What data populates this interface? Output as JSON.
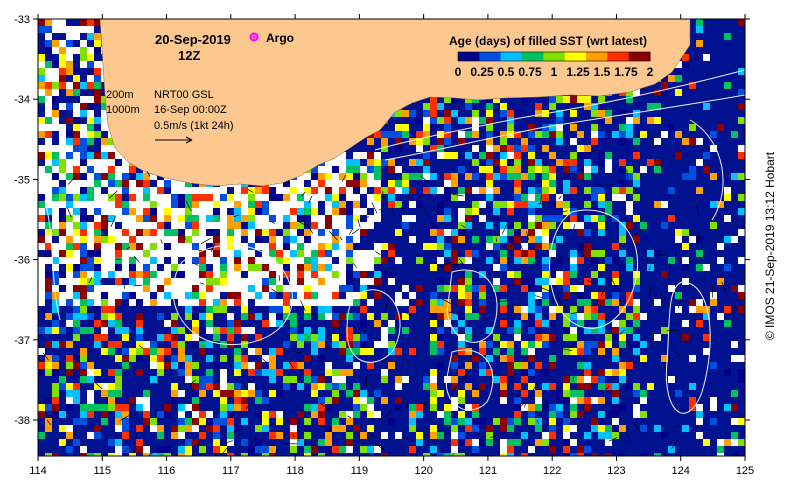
{
  "map": {
    "date": "20-Sep-2019",
    "time": "12Z",
    "argo_label": "Argo",
    "contour_labels": [
      "200m",
      "1000m"
    ],
    "current_source": "NRT00 GSL",
    "current_time": "16-Sep 00:00Z",
    "scale_vector": "0.5m/s (1kt 24h)",
    "colorbar_title": "Age (days) of filled SST (wrt latest)",
    "colorbar_ticks": [
      "0",
      "0.25",
      "0.5",
      "0.75",
      "1",
      "1.25",
      "1.5",
      "1.75",
      "2"
    ],
    "colorbar_colors": [
      "#00008b",
      "#0050e0",
      "#00c0ff",
      "#00c060",
      "#80e000",
      "#ffff00",
      "#ffa000",
      "#ff3000",
      "#8b0000"
    ],
    "x_ticks": [
      "114",
      "115",
      "116",
      "117",
      "118",
      "119",
      "120",
      "121",
      "122",
      "123",
      "124",
      "125"
    ],
    "y_ticks": [
      "-33",
      "-34",
      "-35",
      "-36",
      "-37",
      "-38"
    ],
    "land_color": "#fcc890",
    "credit": "© IMOS 21-Sep-2019 13:12 Hobart"
  }
}
